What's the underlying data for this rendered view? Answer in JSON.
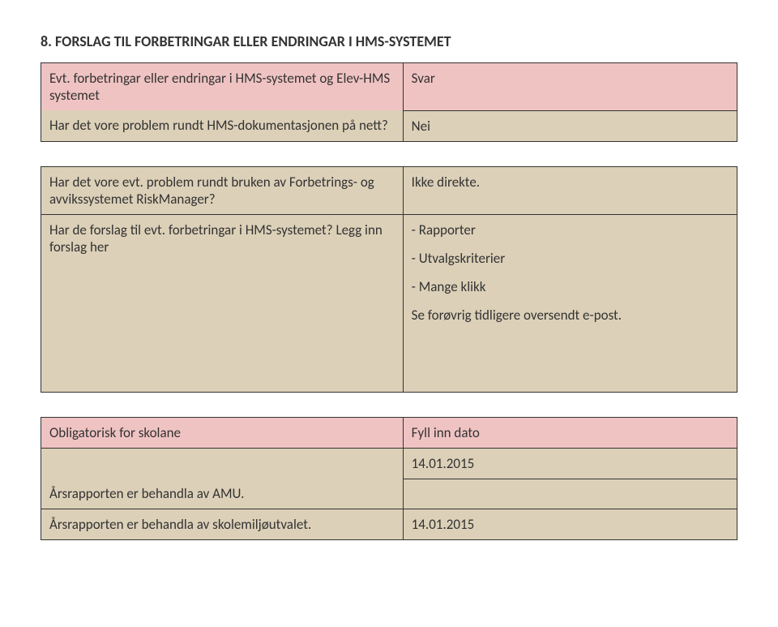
{
  "section": {
    "number": "8.",
    "title": "FORSLAG TIL FORBETRINGAR ELLER ENDRINGAR I HMS-SYSTEMET"
  },
  "table1": {
    "r1_label": "Evt. forbetringar eller endringar i HMS-systemet og Elev-HMS systemet",
    "r1_value": "Svar",
    "r2_label": "Har det vore problem rundt HMS-dokumentasjonen på nett?",
    "r2_value": "Nei"
  },
  "table2": {
    "r1_label": "Har det vore evt. problem rundt bruken av Forbetrings- og avvikssystemet RiskManager?",
    "r1_value": "Ikke direkte.",
    "r2_label": "Har de forslag til evt. forbetringar i HMS-systemet? Legg inn forslag her",
    "r2_v1": "- Rapporter",
    "r2_v2": "- Utvalgskriterier",
    "r2_v3": "- Mange klikk",
    "r2_v4": "Se forøvrig tidligere oversendt e-post."
  },
  "table3": {
    "hdr_left": "Obligatorisk for skolane",
    "hdr_right": "Fyll inn dato",
    "r1_label": "Årsrapporten er behandla av AMU.",
    "r1_value": "14.01.2015",
    "r2_label": "Årsrapporten er behandla av skolemiljøutvalet.",
    "r2_value": "14.01.2015"
  }
}
